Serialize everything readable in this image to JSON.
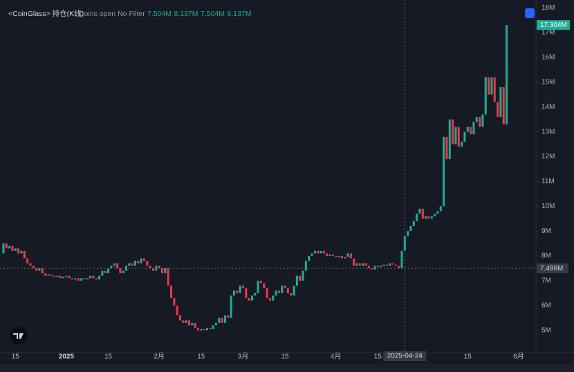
{
  "chart_data": {
    "type": "candlestick",
    "title": "<CoinGlass> 持仓(K线)",
    "subtitle": "Coins open No Filter",
    "ohlc_legend": [
      "7.504M",
      "8.137M",
      "7.504M",
      "8.137M"
    ],
    "up_color": "#22ab94",
    "down_color": "#f23645",
    "open_first": 8.1,
    "close": [
      8.5,
      8.3,
      8.4,
      8.2,
      8.3,
      8.1,
      8.2,
      7.9,
      7.7,
      7.6,
      7.5,
      7.4,
      7.5,
      7.3,
      7.2,
      7.25,
      7.2,
      7.15,
      7.2,
      7.1,
      7.15,
      7.2,
      7.1,
      7.05,
      7.1,
      7.0,
      7.1,
      7.05,
      7.1,
      7.2,
      7.1,
      7.05,
      7.2,
      7.4,
      7.3,
      7.5,
      7.6,
      7.7,
      7.5,
      7.3,
      7.4,
      7.6,
      7.7,
      7.6,
      7.8,
      7.7,
      7.9,
      7.8,
      7.6,
      7.5,
      7.4,
      7.6,
      7.5,
      7.3,
      7.5,
      6.8,
      6.3,
      6.0,
      5.6,
      5.4,
      5.3,
      5.4,
      5.2,
      5.3,
      5.1,
      5.0,
      5.05,
      5.0,
      5.1,
      5.05,
      5.2,
      5.3,
      5.5,
      5.3,
      5.6,
      5.5,
      6.4,
      6.6,
      6.5,
      6.8,
      6.7,
      6.3,
      6.2,
      6.4,
      6.5,
      7.0,
      6.9,
      6.7,
      6.3,
      6.2,
      6.4,
      6.6,
      6.5,
      6.8,
      6.7,
      6.5,
      6.4,
      6.8,
      7.2,
      7.0,
      7.4,
      7.8,
      8.0,
      8.1,
      8.2,
      8.1,
      8.2,
      8.1,
      8.0,
      8.05,
      8.0,
      7.95,
      8.0,
      7.9,
      7.95,
      8.1,
      7.9,
      7.6,
      7.7,
      7.6,
      7.7,
      7.6,
      7.5,
      7.45,
      7.6,
      7.55,
      7.6,
      7.65,
      7.6,
      7.7,
      7.65,
      7.6,
      7.5,
      8.2,
      8.8,
      9.0,
      9.2,
      9.4,
      9.7,
      9.9,
      9.5,
      9.6,
      9.5,
      9.6,
      9.7,
      9.8,
      10.0,
      12.8,
      11.9,
      13.5,
      12.5,
      13.2,
      12.4,
      12.6,
      13.0,
      13.2,
      12.9,
      13.4,
      13.6,
      13.2,
      13.7,
      15.2,
      14.5,
      15.2,
      14.2,
      13.6,
      14.8,
      13.3,
      17.304
    ],
    "last_label": "17.304M",
    "crosshair": {
      "x": 134,
      "x_label": "2025-04-24",
      "y": 7.496,
      "y_label": "7.496M"
    },
    "xlim": [
      -1.15,
      177.8
    ],
    "xticks": [
      {
        "value": 4,
        "label": "15"
      },
      {
        "value": 21,
        "label": "2025"
      },
      {
        "value": 35,
        "label": "15"
      },
      {
        "value": 52,
        "label": "2月"
      },
      {
        "value": 66,
        "label": "15"
      },
      {
        "value": 80,
        "label": "3月"
      },
      {
        "value": 94,
        "label": "15"
      },
      {
        "value": 111,
        "label": "4月"
      },
      {
        "value": 125,
        "label": "15"
      },
      {
        "value": 155,
        "label": "15"
      },
      {
        "value": 172,
        "label": "6月"
      }
    ],
    "ylim": [
      4.1,
      18.2
    ],
    "yticks": [
      {
        "value": 5,
        "label": "5M"
      },
      {
        "value": 6,
        "label": "6M"
      },
      {
        "value": 7,
        "label": "7M"
      },
      {
        "value": 8,
        "label": "8M"
      },
      {
        "value": 9,
        "label": "9M"
      },
      {
        "value": 10,
        "label": "10M"
      },
      {
        "value": 11,
        "label": "11M"
      },
      {
        "value": 12,
        "label": "12M"
      },
      {
        "value": 13,
        "label": "13M"
      },
      {
        "value": 14,
        "label": "14M"
      },
      {
        "value": 15,
        "label": "15M"
      },
      {
        "value": 16,
        "label": "16M"
      },
      {
        "value": 17,
        "label": "17M"
      },
      {
        "value": 18,
        "label": "18M"
      }
    ]
  }
}
